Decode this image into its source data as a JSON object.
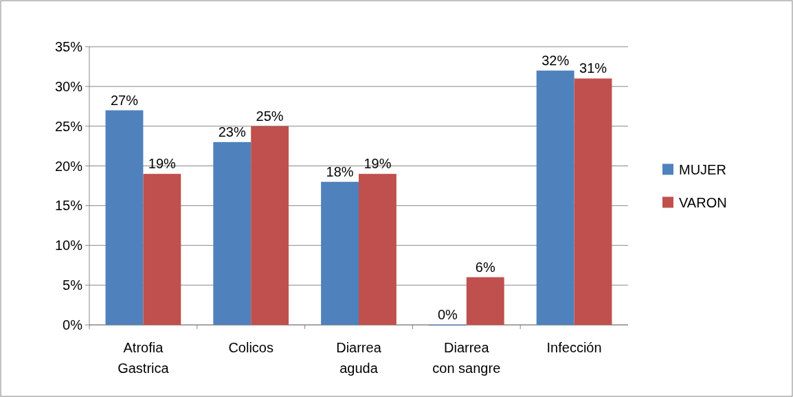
{
  "chart_data": {
    "type": "bar",
    "categories": [
      "Atrofia\nGastrica",
      "Colicos",
      "Diarrea\naguda",
      "Diarrea\ncon sangre",
      "Infección"
    ],
    "series": [
      {
        "name": "MUJER",
        "color": "#4f81bd",
        "values": [
          27,
          23,
          18,
          0,
          32
        ],
        "value_labels": [
          "27%",
          "23%",
          "18%",
          "0%",
          "32%"
        ]
      },
      {
        "name": "VARON",
        "color": "#c0504d",
        "values": [
          19,
          25,
          19,
          6,
          31
        ],
        "value_labels": [
          "19%",
          "25%",
          "19%",
          "6%",
          "31%"
        ]
      }
    ],
    "ylim": [
      0,
      35
    ],
    "yticks": [
      {
        "value": 0,
        "label": "0%"
      },
      {
        "value": 5,
        "label": "5%"
      },
      {
        "value": 10,
        "label": "10%"
      },
      {
        "value": 15,
        "label": "15%"
      },
      {
        "value": 20,
        "label": "20%"
      },
      {
        "value": 25,
        "label": "25%"
      },
      {
        "value": 30,
        "label": "30%"
      },
      {
        "value": 35,
        "label": "35%"
      }
    ],
    "grid": "y",
    "legend": "right"
  }
}
